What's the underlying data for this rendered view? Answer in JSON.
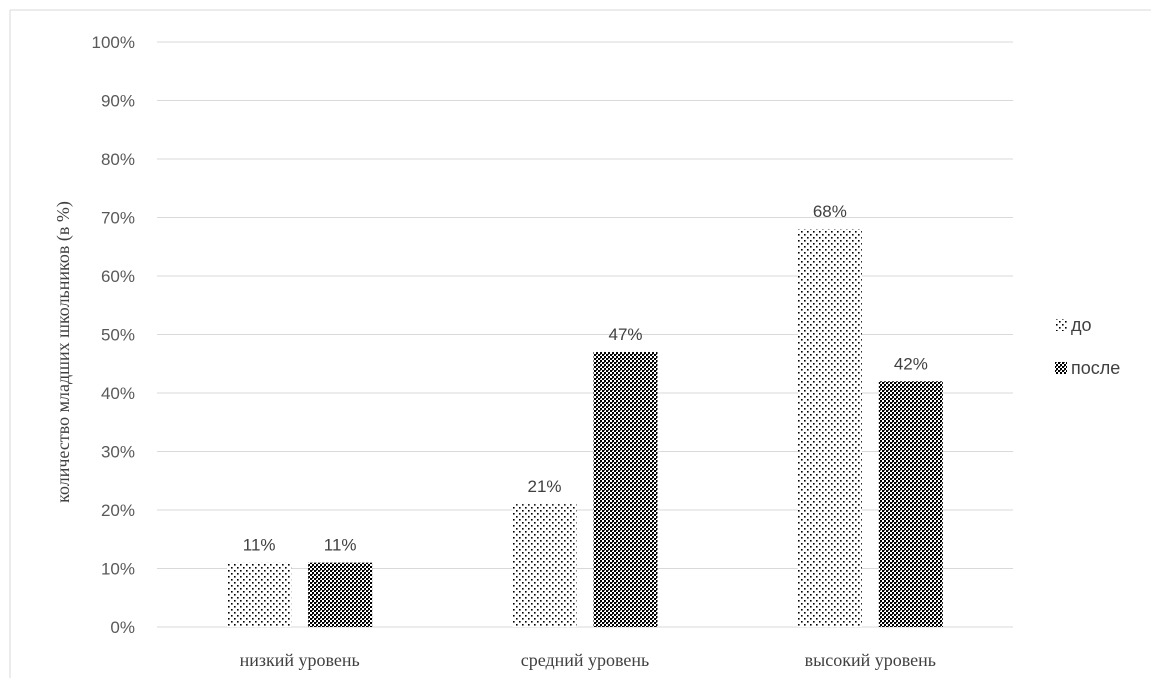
{
  "chart_data": {
    "type": "bar",
    "title": "",
    "xlabel": "",
    "ylabel": "количество младших школьников (в %)",
    "categories": [
      "низкий уровень",
      "средний уровень",
      "высокий уровень"
    ],
    "series": [
      {
        "name": "до",
        "values": [
          11,
          21,
          68
        ],
        "labels": [
          "11%",
          "21%",
          "68%"
        ],
        "pattern": "light-dots",
        "color": "#000000"
      },
      {
        "name": "после",
        "values": [
          11,
          47,
          42
        ],
        "labels": [
          "11%",
          "47%",
          "42%"
        ],
        "pattern": "dense-checker",
        "color": "#000000"
      }
    ],
    "ylim": [
      0,
      100
    ],
    "yticks": [
      0,
      10,
      20,
      30,
      40,
      50,
      60,
      70,
      80,
      90,
      100
    ],
    "ytick_labels": [
      "0%",
      "10%",
      "20%",
      "30%",
      "40%",
      "50%",
      "60%",
      "70%",
      "80%",
      "90%",
      "100%"
    ],
    "grid": true,
    "legend_position": "right"
  },
  "colors": {
    "gridline": "#d9d9d9",
    "text": "#595959",
    "border": "#d9d9d9"
  }
}
